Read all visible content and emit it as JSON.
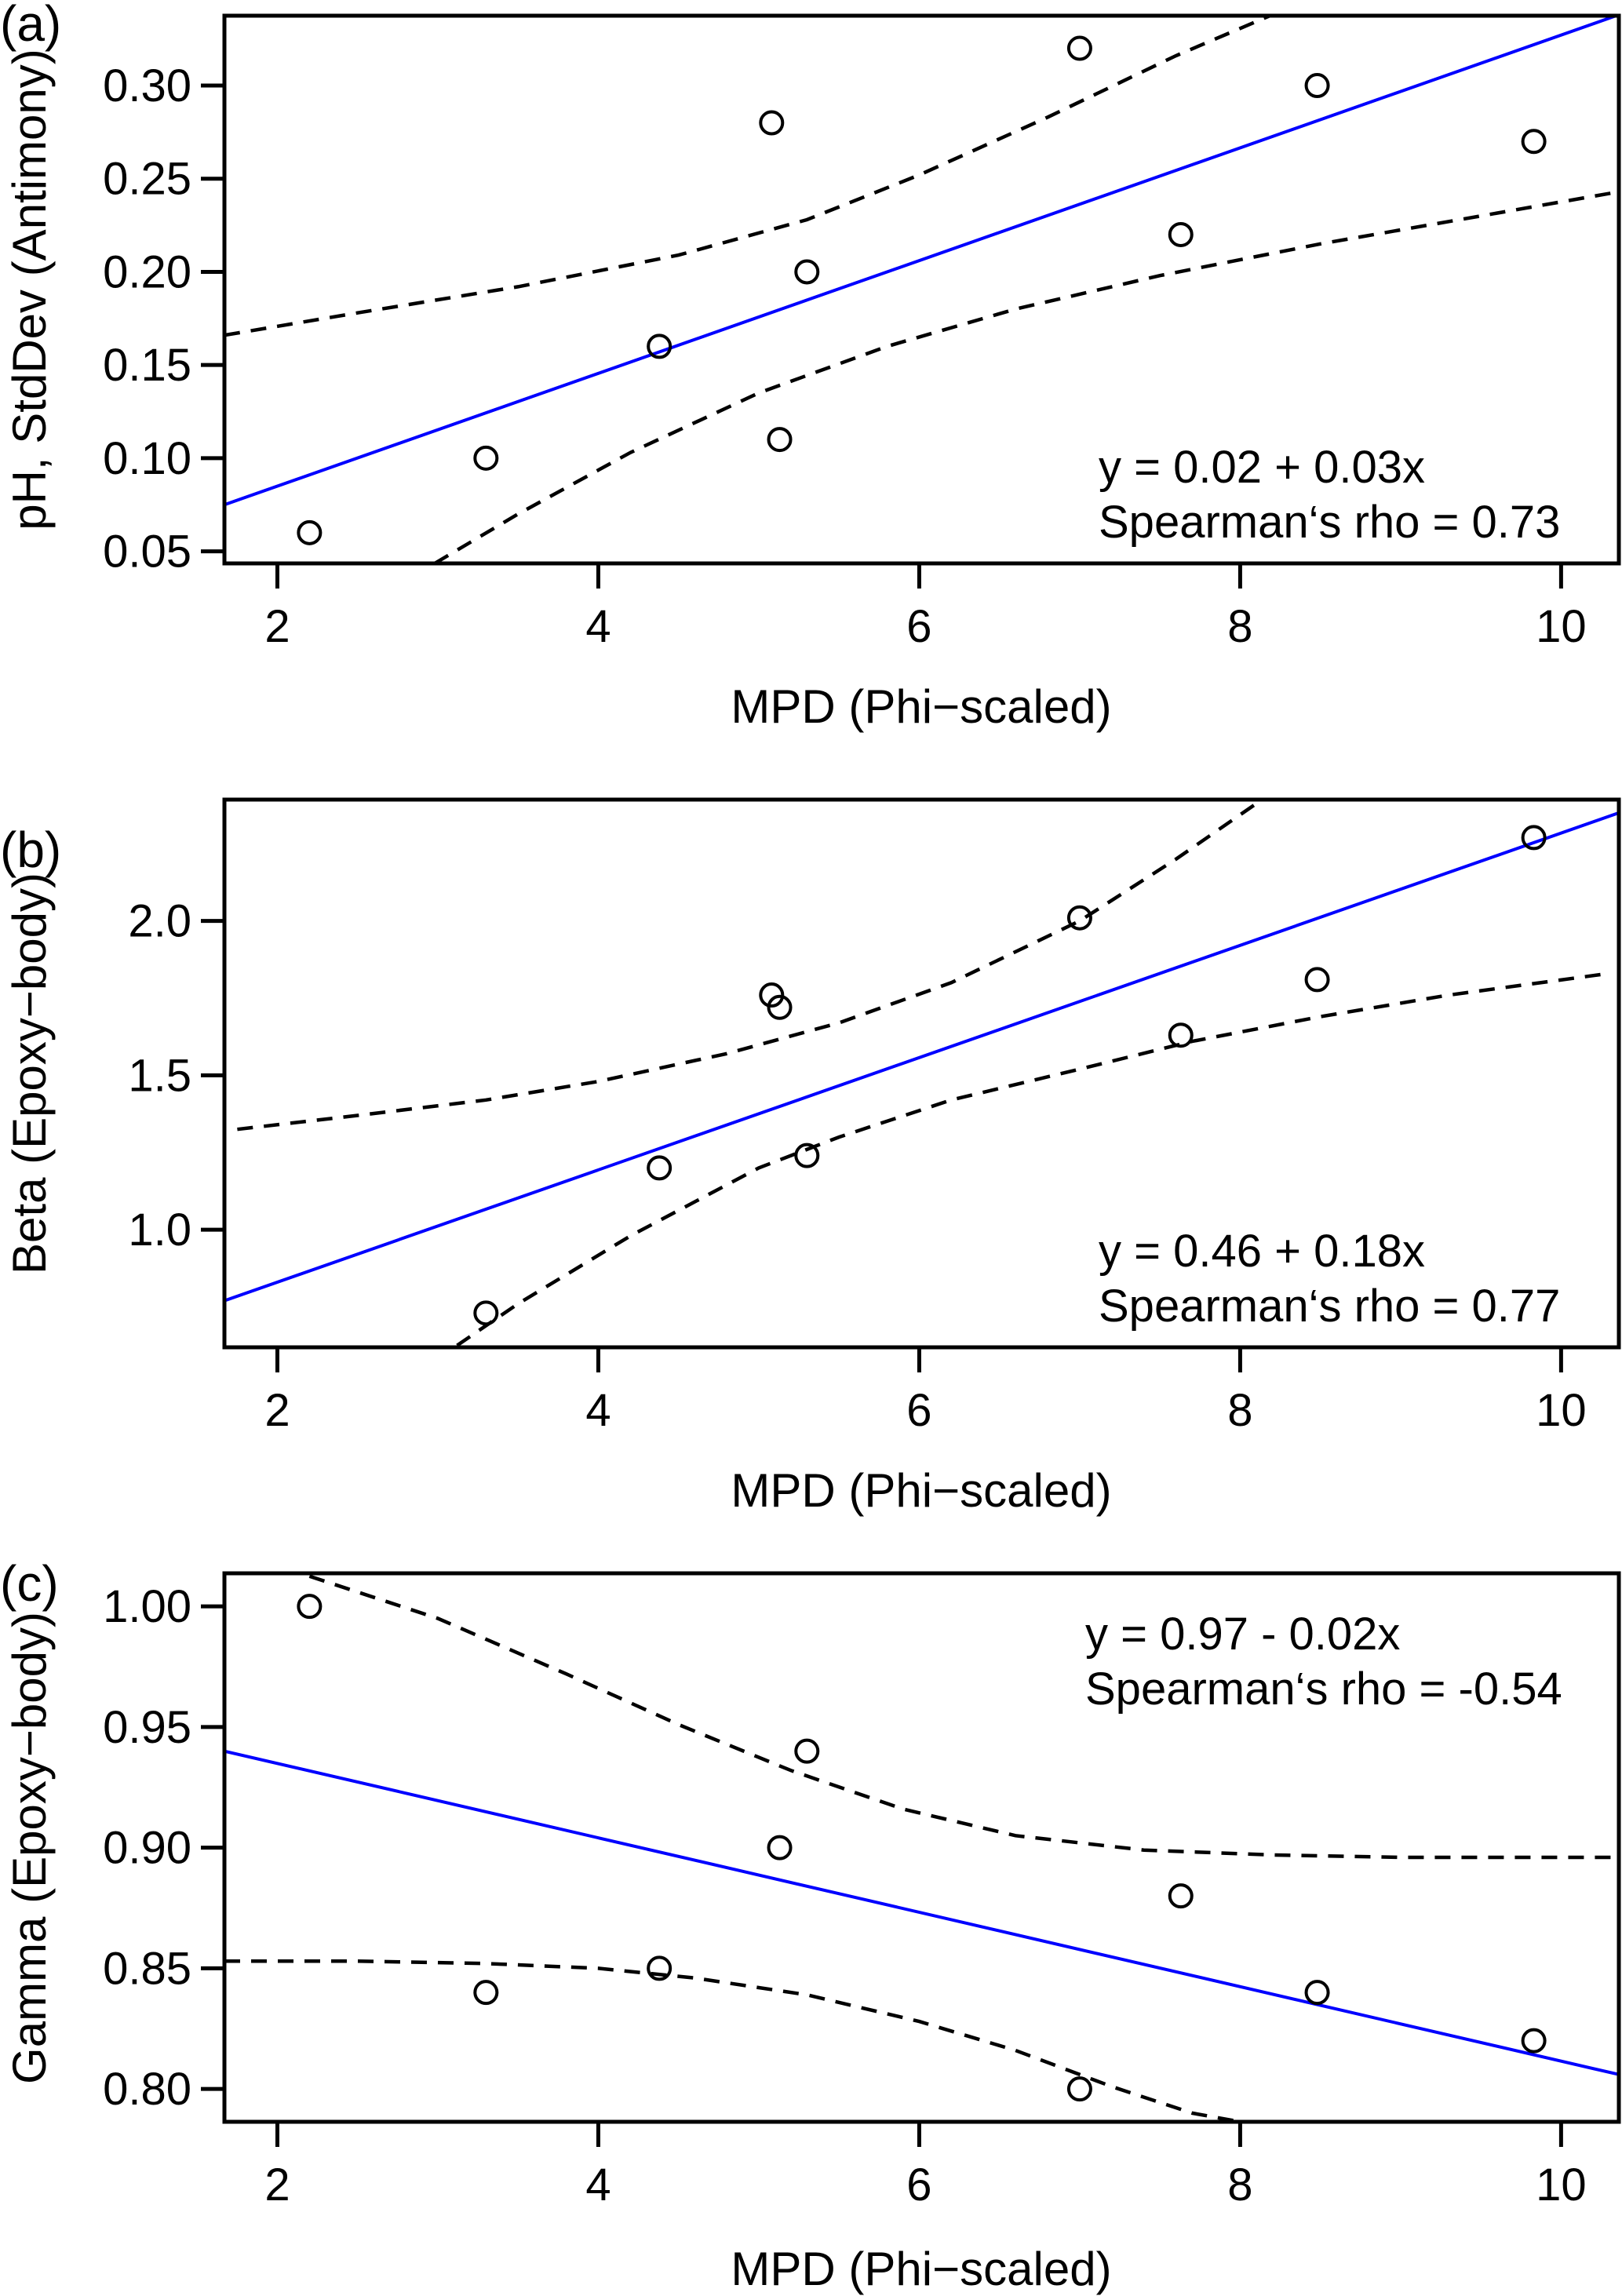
{
  "chart_data": [
    {
      "type": "scatter",
      "panel_label": "(a)",
      "xlabel": "MPD (Phi−scaled)",
      "ylabel": "pH, StdDev (Antimony)",
      "xlim": [
        1.67,
        10.36
      ],
      "ylim": [
        0.0435,
        0.3375
      ],
      "xticks": [
        2,
        4,
        6,
        8,
        10
      ],
      "xtick_labels": [
        "2",
        "4",
        "6",
        "8",
        "10"
      ],
      "yticks": [
        0.05,
        0.1,
        0.15,
        0.2,
        0.25,
        0.3
      ],
      "ytick_labels": [
        "0.05",
        "0.10",
        "0.15",
        "0.20",
        "0.25",
        "0.30"
      ],
      "grid": false,
      "points": {
        "x": [
          2.2,
          3.3,
          4.38,
          5.08,
          5.13,
          5.3,
          7.0,
          7.63,
          8.48,
          9.83
        ],
        "y": [
          0.06,
          0.1,
          0.16,
          0.28,
          0.11,
          0.2,
          0.32,
          0.22,
          0.3,
          0.27
        ]
      },
      "regression": {
        "intercept": 0.02,
        "slope": 0.03,
        "color": "#0000ff",
        "x_range": [
          1.67,
          10.36
        ],
        "y_at_ends": [
          0.075,
          0.338
        ]
      },
      "ci_upper": {
        "x": [
          1.67,
          2.5,
          3.5,
          4.5,
          5.3,
          6.0,
          6.8,
          7.6,
          8.2
        ],
        "y": [
          0.166,
          0.178,
          0.192,
          0.209,
          0.228,
          0.252,
          0.283,
          0.316,
          0.338
        ]
      },
      "ci_lower": {
        "x": [
          2.98,
          3.5,
          4.2,
          5.0,
          5.8,
          6.6,
          7.5,
          8.5,
          9.5,
          10.36
        ],
        "y": [
          0.0435,
          0.07,
          0.103,
          0.135,
          0.16,
          0.18,
          0.198,
          0.215,
          0.23,
          0.243
        ]
      },
      "annotations": [
        "y = 0.02 + 0.03x",
        "Spearman‘s rho = 0.73"
      ],
      "annotation_position": "bottom-right"
    },
    {
      "type": "scatter",
      "panel_label": "(b)",
      "xlabel": "MPD (Phi−scaled)",
      "ylabel": "Beta (Epoxy−body)",
      "xlim": [
        1.67,
        10.36
      ],
      "ylim": [
        0.619,
        2.393
      ],
      "xticks": [
        2,
        4,
        6,
        8,
        10
      ],
      "xtick_labels": [
        "2",
        "4",
        "6",
        "8",
        "10"
      ],
      "yticks": [
        1.0,
        1.5,
        2.0
      ],
      "ytick_labels": [
        "1.0",
        "1.5",
        "2.0"
      ],
      "grid": false,
      "points": {
        "x": [
          3.3,
          4.38,
          5.08,
          5.13,
          5.3,
          7.0,
          7.63,
          8.48,
          9.83
        ],
        "y": [
          0.73,
          1.2,
          1.76,
          1.72,
          1.24,
          2.01,
          1.63,
          1.81,
          2.27
        ]
      },
      "regression": {
        "intercept": 0.46,
        "slope": 0.18,
        "color": "#0000ff",
        "x_range": [
          1.67,
          10.36
        ],
        "y_at_ends": [
          0.77,
          2.35
        ]
      },
      "ci_upper": {
        "x": [
          1.75,
          2.5,
          3.3,
          4.0,
          4.8,
          5.5,
          6.2,
          7.0,
          7.6,
          8.1
        ],
        "y": [
          1.325,
          1.37,
          1.42,
          1.48,
          1.57,
          1.67,
          1.8,
          2.0,
          2.2,
          2.38
        ]
      },
      "ci_lower": {
        "x": [
          3.12,
          3.5,
          4.2,
          5.0,
          5.5,
          6.2,
          7.0,
          7.7,
          8.5,
          9.3,
          10.3
        ],
        "y": [
          0.625,
          0.76,
          0.98,
          1.2,
          1.3,
          1.42,
          1.52,
          1.61,
          1.69,
          1.76,
          1.83
        ]
      },
      "annotations": [
        "y = 0.46 + 0.18x",
        "Spearman‘s rho = 0.77"
      ],
      "annotation_position": "bottom-right"
    },
    {
      "type": "scatter",
      "panel_label": "(c)",
      "xlabel": "MPD (Phi−scaled)",
      "ylabel": "Gamma (Epoxy−body)",
      "xlim": [
        1.67,
        10.36
      ],
      "ylim": [
        0.7864,
        1.0137
      ],
      "xticks": [
        2,
        4,
        6,
        8,
        10
      ],
      "xtick_labels": [
        "2",
        "4",
        "6",
        "8",
        "10"
      ],
      "yticks": [
        0.8,
        0.85,
        0.9,
        0.95,
        1.0
      ],
      "ytick_labels": [
        "0.80",
        "0.85",
        "0.90",
        "0.95",
        "1.00"
      ],
      "grid": false,
      "points": {
        "x": [
          2.2,
          3.3,
          4.38,
          5.13,
          5.3,
          7.0,
          7.63,
          8.48,
          9.83
        ],
        "y": [
          1.0,
          0.84,
          0.85,
          0.9,
          0.94,
          0.8,
          0.88,
          0.84,
          0.82
        ]
      },
      "regression": {
        "intercept": 0.97,
        "slope": -0.02,
        "color": "#0000ff",
        "x_range": [
          1.67,
          10.36
        ],
        "y_at_ends": [
          0.94,
          0.806
        ]
      },
      "ci_upper": {
        "x": [
          2.2,
          3.0,
          3.8,
          4.5,
          5.2,
          5.9,
          6.6,
          7.4,
          8.2,
          9.0,
          10.36
        ],
        "y": [
          1.0125,
          0.995,
          0.972,
          0.951,
          0.932,
          0.916,
          0.905,
          0.899,
          0.897,
          0.896,
          0.896
        ]
      },
      "ci_lower": {
        "x": [
          1.67,
          2.5,
          3.3,
          4.0,
          4.6,
          5.3,
          6.0,
          6.6,
          7.2,
          7.7,
          8.0
        ],
        "y": [
          0.853,
          0.853,
          0.852,
          0.85,
          0.846,
          0.839,
          0.828,
          0.816,
          0.801,
          0.79,
          0.7864
        ]
      },
      "annotations": [
        "y = 0.97 - 0.02x",
        "Spearman‘s rho = -0.54"
      ],
      "annotation_position": "top-right"
    }
  ]
}
